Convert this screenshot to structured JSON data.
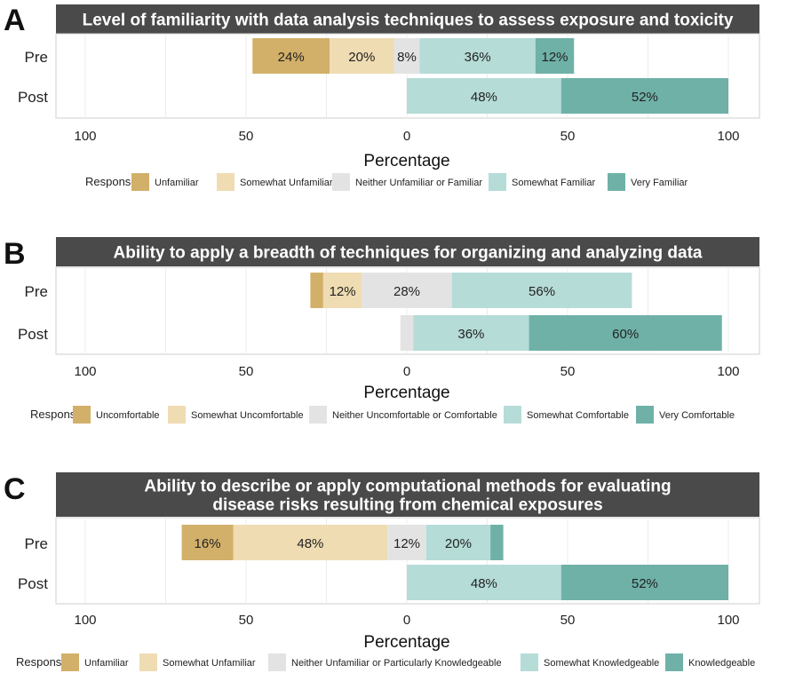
{
  "colors": {
    "neg_strong": "#d2b06a",
    "neg_weak": "#efdcb2",
    "neutral": "#e3e3e3",
    "pos_weak": "#b5dcd7",
    "pos_strong": "#6fb1a7",
    "title_bg": "#4a4a4a",
    "panel_border": "#cfcfcf",
    "grid": "#ececec"
  },
  "axis": {
    "ticks": [
      100,
      50,
      0,
      50,
      100
    ],
    "tick_values": [
      -100,
      -50,
      0,
      50,
      100
    ],
    "xlabel": "Percentage",
    "xlim": [
      -100,
      100
    ]
  },
  "chart_data": [
    {
      "type": "bar",
      "stacking": "diverging",
      "letter": "A",
      "title_lines": [
        "Level of familiarity with data analysis techniques to assess exposure and toxicity"
      ],
      "categories": [
        "Pre",
        "Post"
      ],
      "legend_title": "Response:",
      "legend": [
        "Unfamiliar",
        "Somewhat Unfamiliar",
        "Neither Unfamiliar or Familiar",
        "Somewhat Familiar",
        "Very Familiar"
      ],
      "series": [
        {
          "name": "Unfamiliar",
          "values": [
            24,
            0
          ],
          "labels": [
            "24%",
            ""
          ]
        },
        {
          "name": "Somewhat Unfamiliar",
          "values": [
            20,
            0
          ],
          "labels": [
            "20%",
            ""
          ]
        },
        {
          "name": "Neither Unfamiliar or Familiar",
          "values": [
            8,
            0
          ],
          "labels": [
            "8%",
            ""
          ]
        },
        {
          "name": "Somewhat Familiar",
          "values": [
            36,
            48
          ],
          "labels": [
            "36%",
            "48%"
          ]
        },
        {
          "name": "Very Familiar",
          "values": [
            12,
            52
          ],
          "labels": [
            "12%",
            "52%"
          ]
        }
      ]
    },
    {
      "type": "bar",
      "stacking": "diverging",
      "letter": "B",
      "title_lines": [
        "Ability to apply a breadth of techniques for organizing and analyzing data"
      ],
      "categories": [
        "Pre",
        "Post"
      ],
      "legend_title": "Response:",
      "legend": [
        "Uncomfortable",
        "Somewhat Uncomfortable",
        "Neither Uncomfortable or Comfortable",
        "Somewhat Comfortable",
        "Very Comfortable"
      ],
      "series": [
        {
          "name": "Uncomfortable",
          "values": [
            4,
            0
          ],
          "labels": [
            "",
            ""
          ]
        },
        {
          "name": "Somewhat Uncomfortable",
          "values": [
            12,
            0
          ],
          "labels": [
            "12%",
            ""
          ]
        },
        {
          "name": "Neither Uncomfortable or Comfortable",
          "values": [
            28,
            4
          ],
          "labels": [
            "28%",
            ""
          ]
        },
        {
          "name": "Somewhat Comfortable",
          "values": [
            56,
            36
          ],
          "labels": [
            "56%",
            "36%"
          ]
        },
        {
          "name": "Very Comfortable",
          "values": [
            0,
            60
          ],
          "labels": [
            "",
            "60%"
          ]
        }
      ]
    },
    {
      "type": "bar",
      "stacking": "diverging",
      "letter": "C",
      "title_lines": [
        "Ability to describe or apply computational methods for evaluating",
        "disease risks resulting from chemical exposures"
      ],
      "categories": [
        "Pre",
        "Post"
      ],
      "legend_title": "Response:",
      "legend": [
        "Unfamiliar",
        "Somewhat Unfamiliar",
        "Neither Unfamiliar or Particularly Knowledgeable",
        "Somewhat Knowledgeable",
        "Knowledgeable"
      ],
      "series": [
        {
          "name": "Unfamiliar",
          "values": [
            16,
            0
          ],
          "labels": [
            "16%",
            ""
          ]
        },
        {
          "name": "Somewhat Unfamiliar",
          "values": [
            48,
            0
          ],
          "labels": [
            "48%",
            ""
          ]
        },
        {
          "name": "Neither Unfamiliar or Particularly Knowledgeable",
          "values": [
            12,
            0
          ],
          "labels": [
            "12%",
            ""
          ]
        },
        {
          "name": "Somewhat Knowledgeable",
          "values": [
            20,
            48
          ],
          "labels": [
            "20%",
            "48%"
          ]
        },
        {
          "name": "Knowledgeable",
          "values": [
            4,
            52
          ],
          "labels": [
            "",
            "52%"
          ]
        }
      ]
    }
  ]
}
